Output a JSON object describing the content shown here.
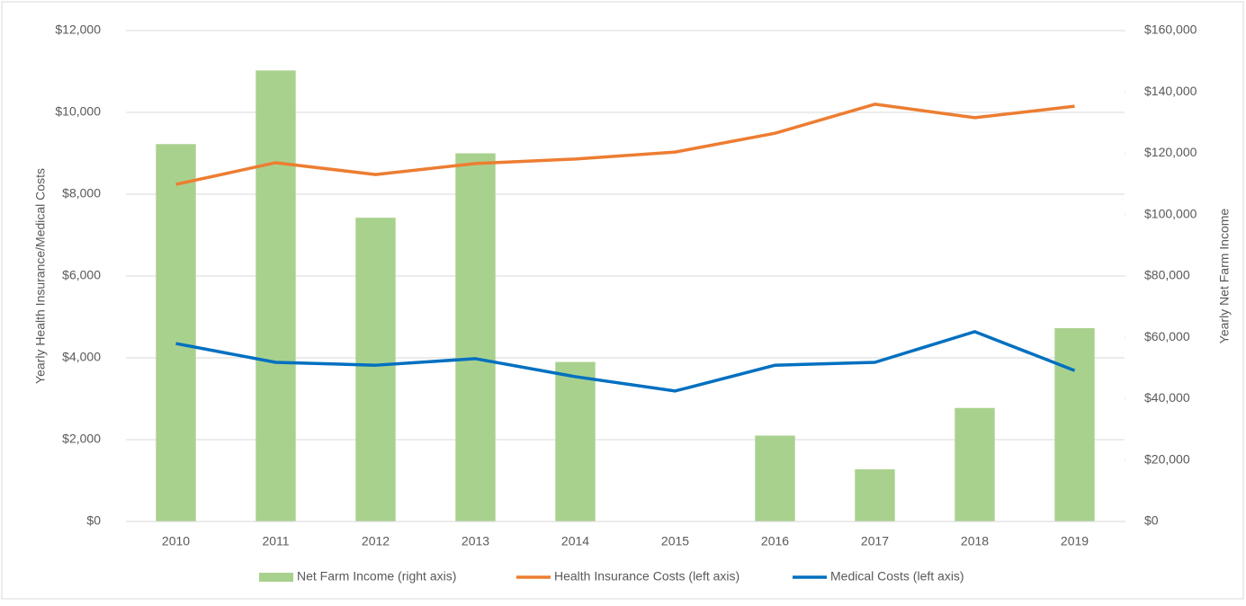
{
  "chart_data": {
    "type": "bar_line",
    "y_label": "Yearly Health Insurance/Medical Costs",
    "y2_label": "Yearly Net Farm Income",
    "categories": [
      "2010",
      "2011",
      "2012",
      "2013",
      "2014",
      "2015",
      "2016",
      "2017",
      "2018",
      "2019"
    ],
    "series": [
      {
        "name": "Net Farm Income (right axis)",
        "type": "bar",
        "axis": "y2",
        "color": "#a9d18e",
        "values": [
          123000,
          147000,
          99000,
          120000,
          52000,
          0,
          28000,
          17000,
          37000,
          63000
        ]
      },
      {
        "name": "Health Insurance Costs (left axis)",
        "type": "line",
        "color": "#ed7d31",
        "values": [
          8240,
          8770,
          8480,
          8750,
          8860,
          9030,
          9490,
          10200,
          9870,
          10150
        ]
      },
      {
        "name": "Medical Costs (left axis)",
        "type": "line",
        "color": "#0070c0",
        "values": [
          4350,
          3890,
          3820,
          3980,
          3540,
          3190,
          3820,
          3890,
          4640,
          3690
        ]
      }
    ],
    "ylim": [
      0,
      12000
    ],
    "yticks": [
      {
        "value": 0,
        "label": "$0"
      },
      {
        "value": 2000,
        "label": "$2,000"
      },
      {
        "value": 4000,
        "label": "$4,000"
      },
      {
        "value": 6000,
        "label": "$6,000"
      },
      {
        "value": 8000,
        "label": "$8,000"
      },
      {
        "value": 10000,
        "label": "$10,000"
      },
      {
        "value": 12000,
        "label": "$12,000"
      }
    ],
    "y2lim": [
      0,
      160000
    ],
    "y2ticks": [
      {
        "value": 0,
        "label": "$0"
      },
      {
        "value": 20000,
        "label": "$20,000"
      },
      {
        "value": 40000,
        "label": "$40,000"
      },
      {
        "value": 60000,
        "label": "$60,000"
      },
      {
        "value": 80000,
        "label": "$80,000"
      },
      {
        "value": 100000,
        "label": "$100,000"
      },
      {
        "value": 120000,
        "label": "$120,000"
      },
      {
        "value": 140000,
        "label": "$140,000"
      },
      {
        "value": 160000,
        "label": "$160,000"
      }
    ],
    "grid": true,
    "legend": "bottom"
  }
}
